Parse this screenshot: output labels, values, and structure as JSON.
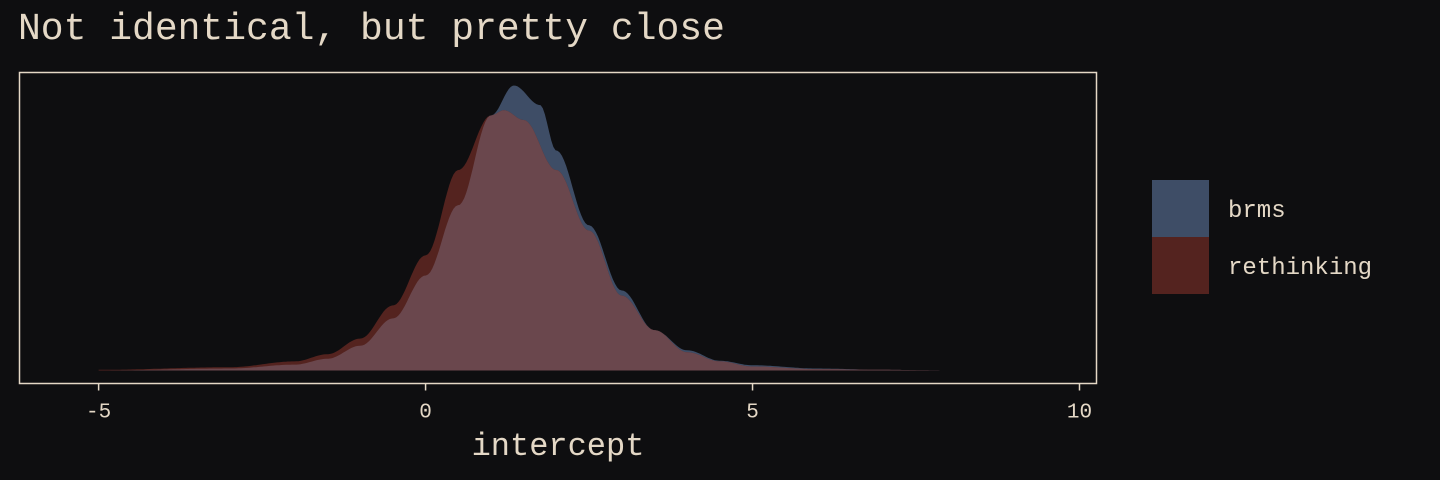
{
  "chart_data": {
    "type": "area",
    "title": "Not identical, but pretty close",
    "xlabel": "intercept",
    "ylabel": "",
    "xlim": [
      -6.21,
      10.26
    ],
    "ylim": [
      -0.02,
      0.458
    ],
    "xticks": [
      -5,
      0,
      5,
      10
    ],
    "grid": false,
    "legend_position": "right",
    "series": [
      {
        "name": "brms",
        "color": "#3e4d66",
        "x": [
          -5,
          -3,
          -2,
          -1.5,
          -1,
          -0.5,
          0,
          0.5,
          1,
          1.35,
          1.75,
          2,
          2.5,
          3,
          3.5,
          4,
          4.5,
          5,
          6,
          7,
          8
        ],
        "density": [
          0,
          0.003,
          0.009,
          0.018,
          0.038,
          0.08,
          0.146,
          0.254,
          0.392,
          0.438,
          0.408,
          0.338,
          0.223,
          0.123,
          0.062,
          0.031,
          0.015,
          0.008,
          0.003,
          0.001,
          0
        ]
      },
      {
        "name": "rethinking",
        "color": "#54231f",
        "x": [
          -5,
          -3,
          -2,
          -1.5,
          -1,
          -0.5,
          0,
          0.5,
          1,
          1.2,
          1.5,
          2,
          2.5,
          3,
          3.5,
          4,
          4.5,
          5,
          6,
          7,
          8
        ],
        "density": [
          0.001,
          0.005,
          0.014,
          0.025,
          0.049,
          0.1,
          0.177,
          0.308,
          0.392,
          0.4,
          0.385,
          0.308,
          0.215,
          0.115,
          0.062,
          0.028,
          0.014,
          0.006,
          0.002,
          0.001,
          0
        ]
      }
    ],
    "overlap_color": "#6a474d"
  }
}
